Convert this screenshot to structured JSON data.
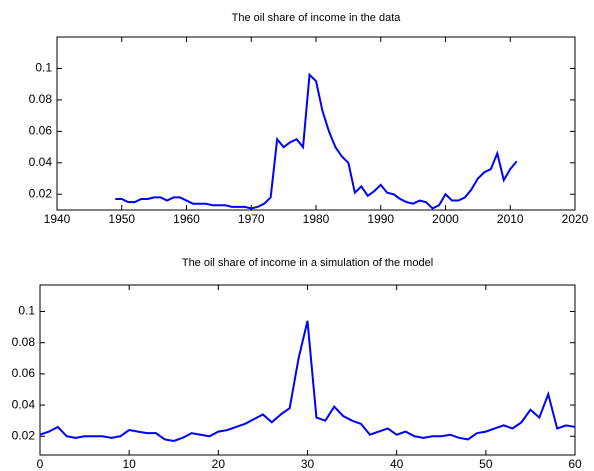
{
  "chart_data": [
    {
      "type": "line",
      "title": "The oil share of income in the data",
      "x": [
        1949,
        1950,
        1951,
        1952,
        1953,
        1954,
        1955,
        1956,
        1957,
        1958,
        1959,
        1960,
        1961,
        1962,
        1963,
        1964,
        1965,
        1966,
        1967,
        1968,
        1969,
        1970,
        1971,
        1972,
        1973,
        1974,
        1975,
        1976,
        1977,
        1978,
        1979,
        1980,
        1981,
        1982,
        1983,
        1984,
        1985,
        1986,
        1987,
        1988,
        1989,
        1990,
        1991,
        1992,
        1993,
        1994,
        1995,
        1996,
        1997,
        1998,
        1999,
        2000,
        2001,
        2002,
        2003,
        2004,
        2005,
        2006,
        2007,
        2008,
        2009,
        2010,
        2011
      ],
      "series": [
        {
          "color": "#0000ff",
          "values": [
            0.017,
            0.017,
            0.015,
            0.015,
            0.017,
            0.017,
            0.018,
            0.018,
            0.016,
            0.018,
            0.018,
            0.016,
            0.014,
            0.014,
            0.014,
            0.013,
            0.013,
            0.013,
            0.012,
            0.012,
            0.012,
            0.011,
            0.012,
            0.014,
            0.018,
            0.055,
            0.05,
            0.053,
            0.055,
            0.05,
            0.096,
            0.092,
            0.073,
            0.06,
            0.05,
            0.044,
            0.04,
            0.021,
            0.025,
            0.019,
            0.022,
            0.026,
            0.021,
            0.02,
            0.017,
            0.015,
            0.014,
            0.016,
            0.015,
            0.011,
            0.013,
            0.02,
            0.016,
            0.016,
            0.018,
            0.023,
            0.03,
            0.034,
            0.036,
            0.046,
            0.029,
            0.036,
            0.041
          ]
        }
      ],
      "xlim": [
        1940,
        2020
      ],
      "xticks": [
        1940,
        1950,
        1960,
        1970,
        1980,
        1990,
        2000,
        2010,
        2020
      ],
      "ylim": [
        0.01,
        0.12
      ],
      "yticks": [
        0.02,
        0.04,
        0.06,
        0.08,
        0.1
      ]
    },
    {
      "type": "line",
      "title": "The oil share of income in a simulation of the model",
      "x": [
        0,
        1,
        2,
        3,
        4,
        5,
        6,
        7,
        8,
        9,
        10,
        11,
        12,
        13,
        14,
        15,
        16,
        17,
        18,
        19,
        20,
        21,
        22,
        23,
        24,
        25,
        26,
        27,
        28,
        29,
        30,
        31,
        32,
        33,
        34,
        35,
        36,
        37,
        38,
        39,
        40,
        41,
        42,
        43,
        44,
        45,
        46,
        47,
        48,
        49,
        50,
        51,
        52,
        53,
        54,
        55,
        56,
        57,
        58,
        59,
        60
      ],
      "series": [
        {
          "color": "#0000ff",
          "values": [
            0.021,
            0.023,
            0.026,
            0.02,
            0.019,
            0.02,
            0.02,
            0.02,
            0.019,
            0.02,
            0.024,
            0.023,
            0.022,
            0.022,
            0.018,
            0.017,
            0.019,
            0.022,
            0.021,
            0.02,
            0.023,
            0.024,
            0.026,
            0.028,
            0.031,
            0.034,
            0.029,
            0.034,
            0.038,
            0.07,
            0.094,
            0.032,
            0.03,
            0.039,
            0.033,
            0.03,
            0.028,
            0.021,
            0.023,
            0.025,
            0.021,
            0.023,
            0.02,
            0.019,
            0.02,
            0.02,
            0.021,
            0.019,
            0.018,
            0.022,
            0.023,
            0.025,
            0.027,
            0.025,
            0.029,
            0.037,
            0.032,
            0.047,
            0.025,
            0.027,
            0.026
          ]
        }
      ],
      "xlim": [
        0,
        60
      ],
      "xticks": [
        0,
        10,
        20,
        30,
        40,
        50,
        60
      ],
      "ylim": [
        0.008,
        0.117
      ],
      "yticks": [
        0.02,
        0.04,
        0.06,
        0.08,
        0.1
      ]
    }
  ]
}
